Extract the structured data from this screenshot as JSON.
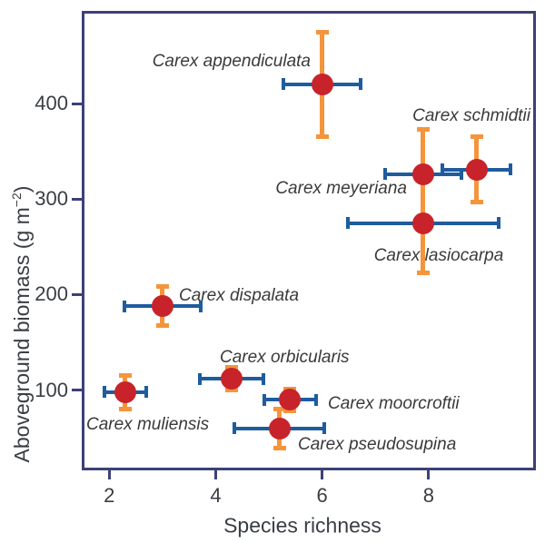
{
  "chart_data": {
    "type": "scatter",
    "error_bars": true,
    "title": "",
    "xlabel": "Species richness",
    "ylabel": {
      "pre": "Aboveground biomass (g m",
      "sup": "−2",
      "post": ")"
    },
    "xlim": [
      1.5,
      10
    ],
    "ylim": [
      17,
      496
    ],
    "x_ticks": [
      2,
      4,
      6,
      8
    ],
    "y_ticks": [
      100,
      200,
      300,
      400
    ],
    "grid": false,
    "legend": "none",
    "colors": {
      "point": "#c8232a",
      "x_error": "#1e5c9e",
      "y_error": "#f4953c",
      "frame": "#3c4178",
      "text": "#3a3a3a",
      "tick_text": "#3a3e44"
    },
    "series": [
      {
        "name": "Carex appendiculata",
        "x": 6.0,
        "y": 420,
        "xerr": 0.73,
        "yerr": 55,
        "label": {
          "x": 342,
          "y": 68,
          "align": "right"
        }
      },
      {
        "name": "Carex schmidtii",
        "x": 8.9,
        "y": 331,
        "xerr": 0.65,
        "yerr": 35,
        "label": {
          "x": 584,
          "y": 128,
          "align": "right"
        }
      },
      {
        "name": "Carex meyeriana",
        "x": 7.9,
        "y": 326,
        "xerr": 0.73,
        "yerr": 47,
        "label": {
          "x": 448,
          "y": 208,
          "align": "right"
        }
      },
      {
        "name": "Carex lasiocarpa",
        "x": 7.9,
        "y": 275,
        "xerr": 1.43,
        "yerr": 53,
        "label": {
          "x": 483,
          "y": 282,
          "align": "center"
        }
      },
      {
        "name": "Carex dispalata",
        "x": 3.0,
        "y": 188,
        "xerr": 0.73,
        "yerr": 21,
        "label": {
          "x": 197,
          "y": 326,
          "align": "left"
        }
      },
      {
        "name": "Carex orbicularis",
        "x": 4.3,
        "y": 112,
        "xerr": 0.6,
        "yerr": 12,
        "label": {
          "x": 242,
          "y": 394,
          "align": "left"
        }
      },
      {
        "name": "Carex muliensis",
        "x": 2.3,
        "y": 98,
        "xerr": 0.4,
        "yerr": 18,
        "label": {
          "x": 95,
          "y": 468,
          "align": "left"
        }
      },
      {
        "name": "Carex moorcroftii",
        "x": 5.4,
        "y": 90,
        "xerr": 0.5,
        "yerr": 12,
        "label": {
          "x": 361,
          "y": 445,
          "align": "left"
        }
      },
      {
        "name": "Carex pseudosupina",
        "x": 5.2,
        "y": 60,
        "xerr": 0.85,
        "yerr": 21,
        "label": {
          "x": 328,
          "y": 490,
          "align": "left"
        }
      }
    ]
  }
}
